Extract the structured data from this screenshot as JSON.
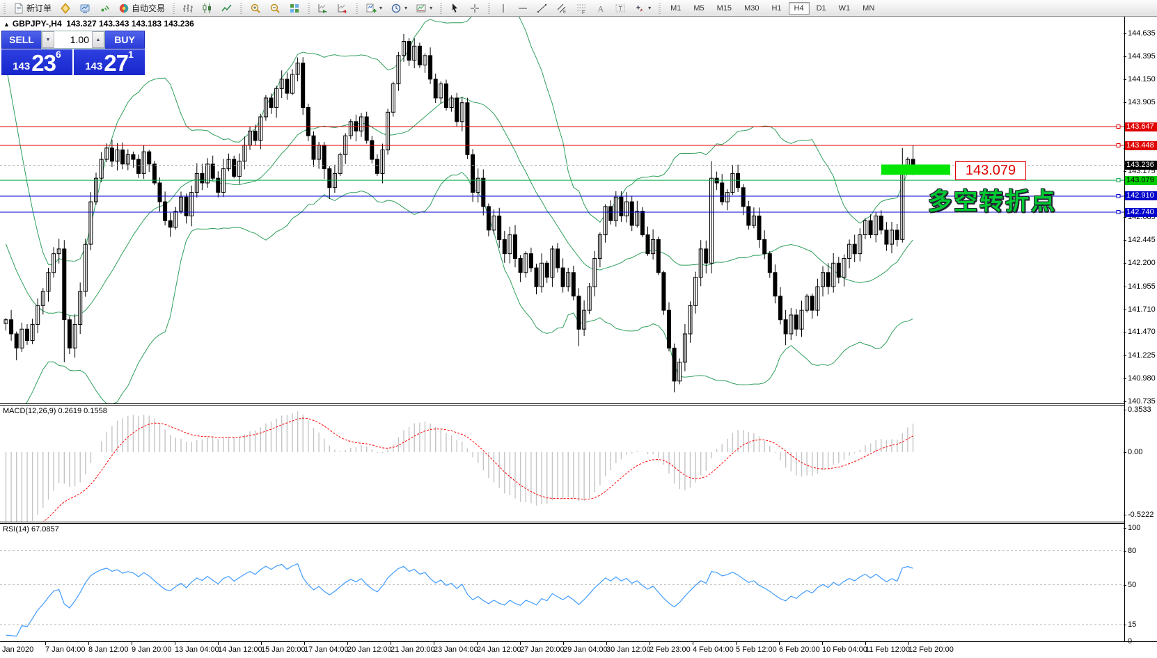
{
  "toolbar": {
    "groups": [
      [
        {
          "name": "new-order-button",
          "icon": "new-order",
          "label": "新订单"
        },
        {
          "name": "metaeditor-button",
          "icon": "metaeditor"
        },
        {
          "name": "market-watch-button",
          "icon": "market-watch"
        },
        {
          "name": "signals-button",
          "icon": "signals"
        },
        {
          "name": "autotrading-button",
          "icon": "autotrading",
          "label": "自动交易"
        }
      ],
      [
        {
          "name": "bar-chart-button",
          "icon": "bar-chart"
        },
        {
          "name": "candlestick-chart-button",
          "icon": "candle-chart"
        },
        {
          "name": "line-chart-button",
          "icon": "line-chart"
        }
      ],
      [
        {
          "name": "zoom-in-button",
          "icon": "zoom-in"
        },
        {
          "name": "zoom-out-button",
          "icon": "zoom-out"
        },
        {
          "name": "tile-windows-button",
          "icon": "tile-windows"
        }
      ],
      [
        {
          "name": "auto-scroll-button",
          "icon": "auto-scroll"
        },
        {
          "name": "chart-shift-button",
          "icon": "chart-shift"
        }
      ],
      [
        {
          "name": "indicators-button",
          "icon": "indicators",
          "caret": true
        },
        {
          "name": "periods-button",
          "icon": "periods",
          "caret": true
        },
        {
          "name": "templates-button",
          "icon": "templates",
          "caret": true
        }
      ],
      [
        {
          "name": "cursor-button",
          "icon": "cursor"
        },
        {
          "name": "crosshair-button",
          "icon": "crosshair"
        }
      ],
      [
        {
          "name": "vertical-line-button",
          "icon": "vline"
        },
        {
          "name": "horizontal-line-button",
          "icon": "hline"
        },
        {
          "name": "trendline-button",
          "icon": "trendline"
        },
        {
          "name": "equidistant-channel-button",
          "icon": "channel"
        },
        {
          "name": "fibonacci-button",
          "icon": "fibo"
        },
        {
          "name": "text-button",
          "icon": "text"
        },
        {
          "name": "text-label-button",
          "icon": "text-label"
        },
        {
          "name": "arrows-button",
          "icon": "arrows",
          "caret": true
        }
      ]
    ],
    "timeframes": {
      "items": [
        "M1",
        "M5",
        "M15",
        "M30",
        "H1",
        "H4",
        "D1",
        "W1",
        "MN"
      ],
      "active": "H4"
    }
  },
  "header": {
    "symbol_title": "GBPJPY-,H4",
    "quotes": "143.327 143.343 143.183 143.236"
  },
  "one_click": {
    "sell_label": "SELL",
    "buy_label": "BUY",
    "volume": "1.00",
    "sell_price": {
      "small": "143",
      "big": "23",
      "sup": "6"
    },
    "buy_price": {
      "small": "143",
      "big": "27",
      "sup": "1"
    }
  },
  "price_axis": {
    "ticks": [
      "144.635",
      "144.395",
      "144.150",
      "143.905",
      "143.420",
      "143.175",
      "142.685",
      "142.445",
      "142.200",
      "141.955",
      "141.710",
      "141.470",
      "141.225",
      "140.980",
      "140.735"
    ],
    "badges": [
      {
        "price": "143.647",
        "bg": "#e00000",
        "fg": "#ffffff"
      },
      {
        "price": "143.448",
        "bg": "#e00000",
        "fg": "#ffffff"
      },
      {
        "price": "143.236",
        "bg": "#000000",
        "fg": "#ffffff"
      },
      {
        "price": "143.079",
        "bg": "#00ce00",
        "fg": "#000000"
      },
      {
        "price": "142.910",
        "bg": "#0000cc",
        "fg": "#ffffff"
      },
      {
        "price": "142.740",
        "bg": "#0000cc",
        "fg": "#ffffff"
      }
    ]
  },
  "indicator_labels": {
    "macd": "MACD(12,26,9) 0.2619 0.1558",
    "rsi": "RSI(14) 67.0857"
  },
  "annotations": {
    "price_callout": "143.079",
    "cn_note": "多空转折点",
    "rectangle": {
      "x1_bar": 165,
      "x2_bar": 178,
      "price_top": 143.245,
      "price_bottom": 143.135,
      "color": "#00e600"
    }
  },
  "chart_data": {
    "type": "candlestick",
    "symbol": "GBPJPY-",
    "timeframe": "H4",
    "title": "GBPJPY-,H4 143.327 143.343 143.183 143.236",
    "last_quote": {
      "open": 143.327,
      "high": 143.343,
      "low": 143.183,
      "close": 143.236
    },
    "y_axis": {
      "min": 140.735,
      "max": 144.635,
      "tick_step": 0.245
    },
    "x_axis": {
      "labels": [
        "Jan 2020",
        "7 Jan 04:00",
        "8 Jan 12:00",
        "9 Jan 20:00",
        "13 Jan 04:00",
        "14 Jan 12:00",
        "15 Jan 20:00",
        "17 Jan 04:00",
        "20 Jan 12:00",
        "21 Jan 20:00",
        "23 Jan 04:00",
        "24 Jan 12:00",
        "27 Jan 20:00",
        "29 Jan 04:00",
        "30 Jan 12:00",
        "2 Feb 23:00",
        "4 Feb 04:00",
        "5 Feb 12:00",
        "6 Feb 20:00",
        "10 Feb 04:00",
        "11 Feb 12:00",
        "12 Feb 20:00"
      ]
    },
    "candles": {
      "seed": [
        144.45,
        144.3,
        144.1,
        143.85,
        143.6,
        143.3,
        143.05,
        142.8,
        142.55,
        142.3,
        142.1,
        141.9,
        141.75,
        141.65,
        141.58,
        141.52,
        141.5,
        141.48,
        141.52,
        141.56
      ],
      "closes": [
        141.6,
        141.45,
        141.3,
        141.5,
        141.38,
        141.55,
        141.75,
        141.9,
        142.1,
        142.3,
        142.35,
        141.6,
        141.3,
        141.55,
        141.9,
        142.4,
        142.85,
        143.1,
        143.3,
        143.42,
        143.28,
        143.4,
        143.25,
        143.35,
        143.3,
        143.15,
        143.38,
        143.25,
        143.05,
        142.85,
        142.65,
        142.58,
        142.75,
        142.9,
        142.7,
        142.95,
        143.15,
        143.05,
        143.25,
        143.1,
        142.95,
        143.2,
        143.3,
        143.12,
        143.28,
        143.45,
        143.6,
        143.5,
        143.75,
        143.95,
        143.85,
        144.05,
        144.15,
        144.0,
        144.2,
        144.32,
        143.85,
        143.55,
        143.3,
        143.45,
        143.2,
        143.0,
        143.15,
        143.35,
        143.55,
        143.7,
        143.6,
        143.75,
        143.5,
        143.3,
        143.15,
        143.4,
        143.8,
        144.1,
        144.4,
        144.55,
        144.35,
        144.5,
        144.3,
        144.4,
        144.15,
        143.95,
        144.1,
        143.85,
        143.95,
        143.7,
        143.9,
        143.35,
        142.95,
        143.1,
        142.8,
        142.55,
        142.7,
        142.45,
        142.3,
        142.5,
        142.25,
        142.1,
        142.3,
        142.15,
        141.95,
        142.2,
        142.05,
        142.35,
        142.15,
        141.95,
        142.1,
        141.85,
        141.5,
        141.7,
        141.95,
        142.25,
        142.5,
        142.8,
        142.65,
        142.9,
        142.7,
        142.85,
        142.6,
        142.75,
        142.5,
        142.3,
        142.45,
        142.1,
        141.7,
        141.3,
        140.95,
        141.15,
        141.45,
        141.75,
        142.05,
        142.35,
        142.2,
        143.1,
        143.05,
        142.85,
        142.95,
        143.15,
        143.0,
        142.8,
        142.6,
        142.7,
        142.45,
        142.3,
        142.1,
        141.85,
        141.6,
        141.45,
        141.65,
        141.5,
        141.7,
        141.85,
        141.7,
        141.95,
        142.1,
        141.95,
        142.2,
        142.05,
        142.25,
        142.4,
        142.3,
        142.5,
        142.65,
        142.5,
        142.7,
        142.55,
        142.4,
        142.55,
        142.45,
        143.2,
        143.3,
        143.236
      ],
      "wick_overrides": {
        "2": {
          "low": 141.17
        },
        "11": {
          "low": 141.15
        },
        "55": {
          "high": 144.38
        },
        "61": {
          "low": 142.88
        },
        "75": {
          "high": 144.63
        },
        "88": {
          "low": 142.85
        },
        "108": {
          "low": 141.32
        },
        "126": {
          "low": 140.83
        },
        "133": {
          "high": 143.28
        },
        "147": {
          "low": 141.33
        },
        "169": {
          "high": 143.42
        },
        "171": {
          "high": 143.45
        }
      }
    },
    "overlays": {
      "bollinger": {
        "period": 20,
        "deviation": 2,
        "color": "#2e9e5b"
      }
    },
    "horizontal_lines": [
      {
        "price": 143.647,
        "color": "#dd0000",
        "style": "solid",
        "handle": true
      },
      {
        "price": 143.448,
        "color": "#dd0000",
        "style": "solid",
        "handle": true
      },
      {
        "price": 143.236,
        "color": "#a0a0a0",
        "style": "dash",
        "handle": false
      },
      {
        "price": 143.079,
        "color": "#00aa44",
        "style": "solid",
        "handle": true
      },
      {
        "price": 142.91,
        "color": "#0000cc",
        "style": "solid",
        "handle": true
      },
      {
        "price": 142.74,
        "color": "#0000cc",
        "style": "solid",
        "handle": true
      }
    ],
    "macd": {
      "label": "MACD(12,26,9) 0.2619 0.1558",
      "params": [
        12,
        26,
        9
      ],
      "values": [
        0.2619,
        0.1558
      ],
      "axis_ticks": [
        "0.3533",
        "0.00",
        "-0.5222"
      ],
      "axis_values": [
        0.3533,
        0,
        -0.5222
      ],
      "histogram_color": "#c4c4c4",
      "signal_color": "#ff0000"
    },
    "rsi": {
      "label": "RSI(14) 67.0857",
      "period": 14,
      "value": 67.0857,
      "axis_ticks": [
        "100",
        "80",
        "50",
        "15",
        "0"
      ],
      "axis_values": [
        100,
        80,
        50,
        15,
        0
      ],
      "levels": [
        80,
        50,
        15
      ],
      "color": "#3e9bff"
    }
  }
}
